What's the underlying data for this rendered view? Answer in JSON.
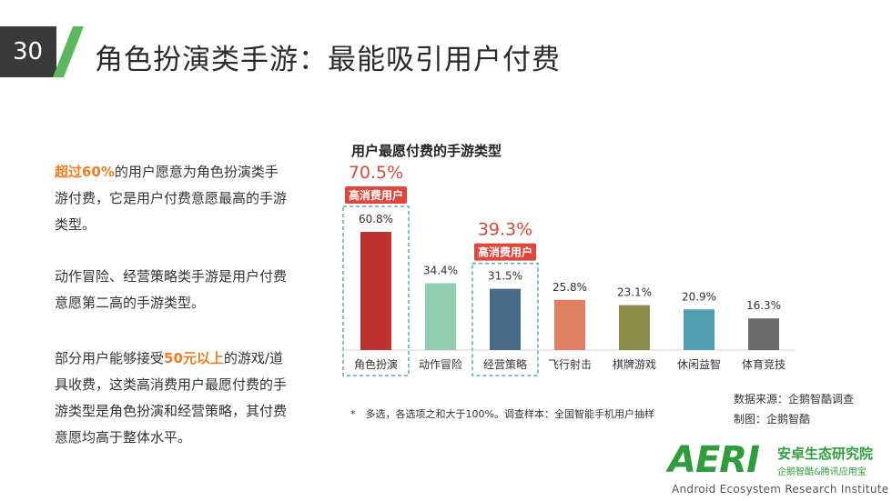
{
  "header": {
    "slide_number": "30",
    "title": "角色扮演类手游：最能吸引用户付费",
    "accent_color": "#5cb85c"
  },
  "left_text": {
    "p1": {
      "hl": "超过60%",
      "rest": "的用户愿意为角色扮演类手游付费，它是用户付费意愿最高的手游类型。"
    },
    "p2": "动作冒险、经营策略类手游是用户付费意愿第二高的手游类型。",
    "p3": {
      "pre": "部分用户能够接受",
      "hl": "50元以上",
      "post": "的游戏/道具收费，这类高消费用户最愿付费的手游类型是角色扮演和经营策略，其付费意愿均高于整体水平。"
    },
    "highlight_color": "#f07c1c"
  },
  "chart_data": {
    "type": "bar",
    "title": "用户最愿付费的手游类型",
    "categories": [
      "角色扮演",
      "动作冒险",
      "经营策略",
      "飞行射击",
      "棋牌游戏",
      "休闲益智",
      "体育竞技"
    ],
    "values": [
      60.8,
      34.4,
      31.5,
      25.8,
      23.1,
      20.9,
      16.3
    ],
    "value_labels": [
      "60.8%",
      "34.4%",
      "31.5%",
      "25.8%",
      "23.1%",
      "20.9%",
      "16.3%"
    ],
    "colors": [
      "#c0322f",
      "#8fcfb0",
      "#4a6a8a",
      "#e08060",
      "#8b8b4a",
      "#4f9db0",
      "#6b6b6b"
    ],
    "ylim": [
      0,
      70
    ],
    "xlabel": "",
    "ylabel": "",
    "highlights": [
      {
        "category": "角色扮演",
        "value_label": "70.5%",
        "badge": "高消费用户"
      },
      {
        "category": "经营策略",
        "value_label": "39.3%",
        "badge": "高消费用户"
      }
    ],
    "highlight_text_color": "#d9493a",
    "badge_color": "#e0463a"
  },
  "footnote": "*　多选，各选项之和大于100%。调查样本：全国智能手机用户抽样",
  "source": {
    "data_source": "数据来源：企鹅智酷调查",
    "made_by": "制图：企鹅智酷"
  },
  "logo": {
    "main": "AERI",
    "cn_name": "安卓生态研究院",
    "cn_sub": "企鹅智酷&腾讯应用宝",
    "en_name": "Android Ecosystem Research Institute"
  }
}
